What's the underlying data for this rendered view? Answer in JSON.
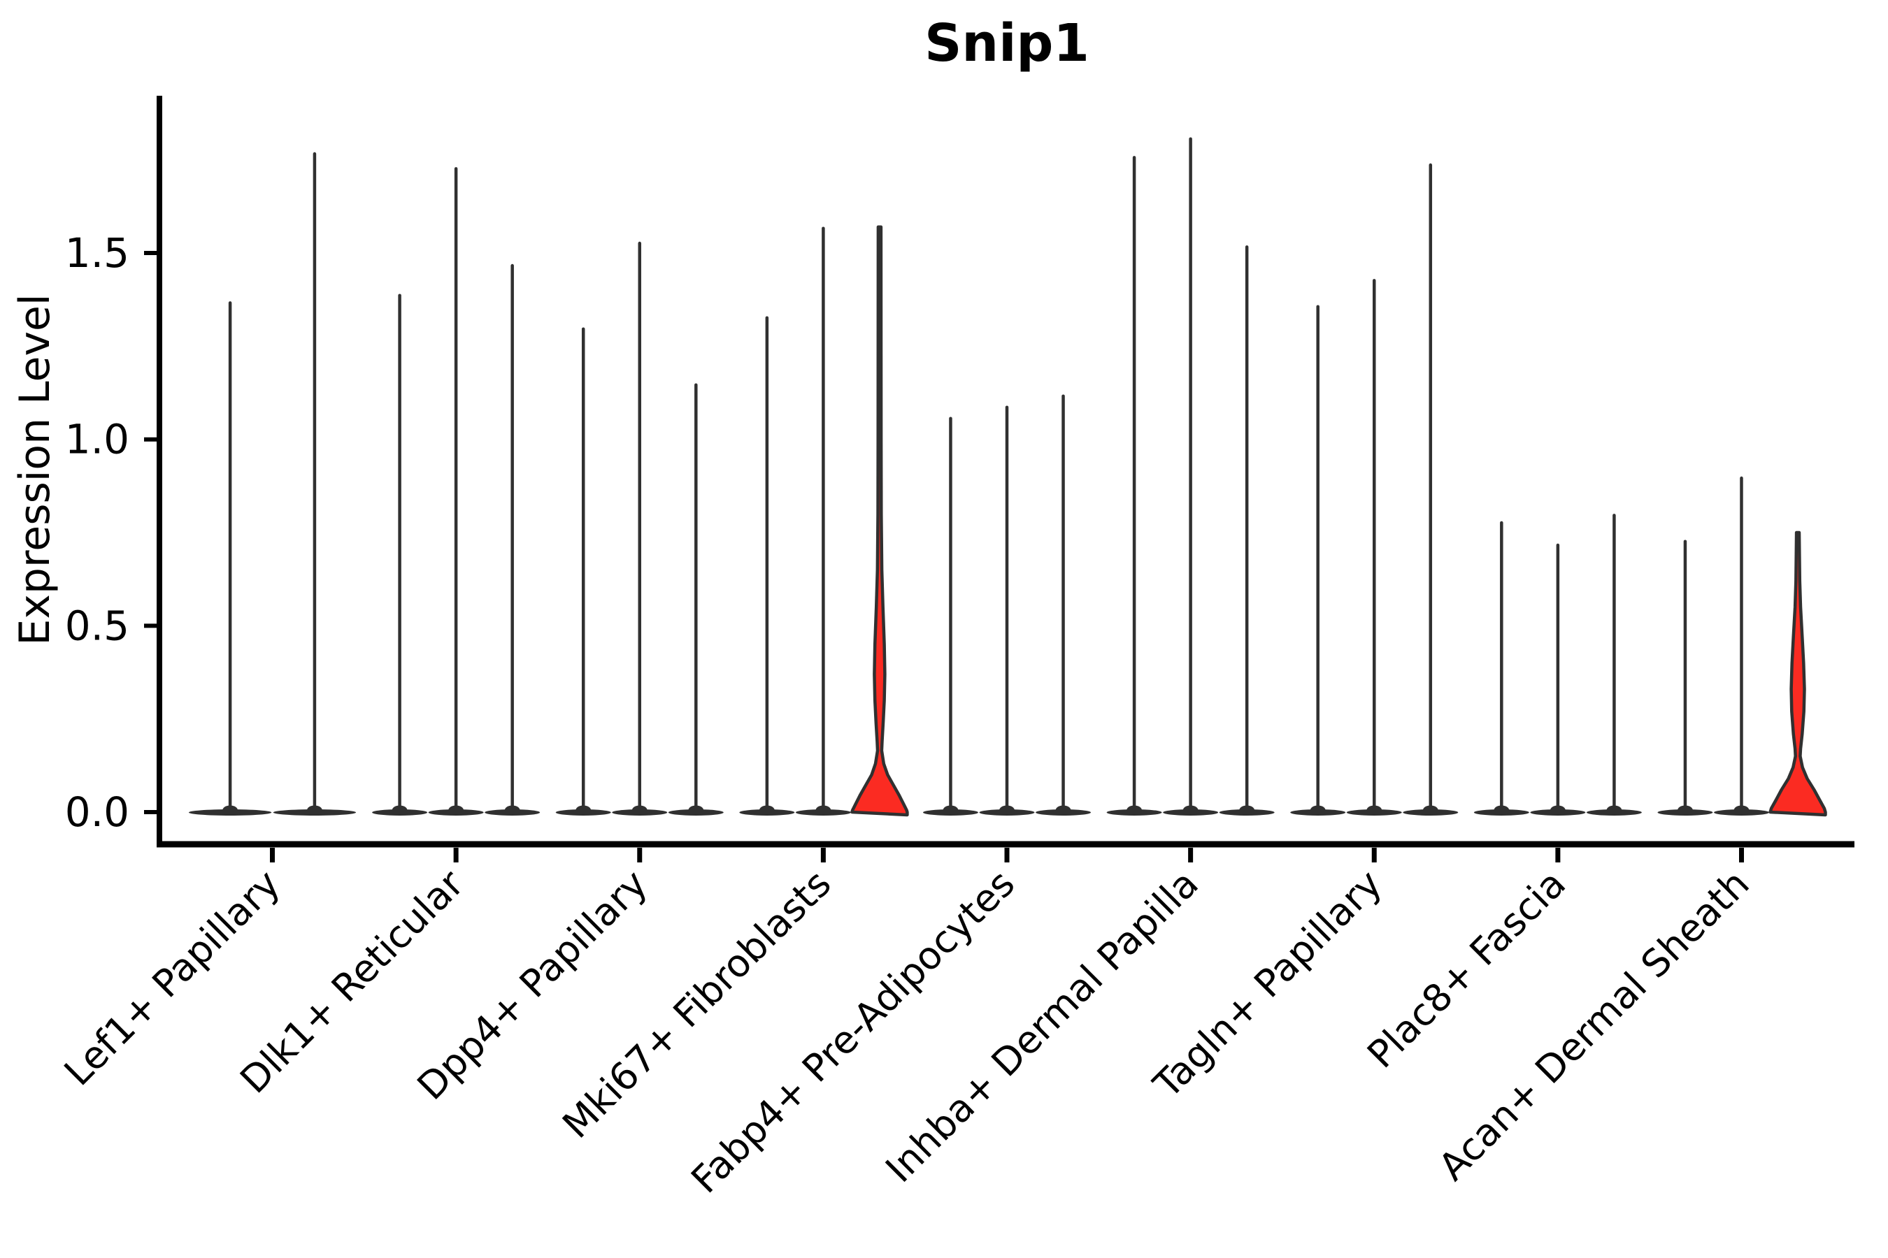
{
  "chart_data": {
    "type": "violin",
    "title": "Snip1",
    "ylabel": "Expression Level",
    "xlabel": "",
    "yticks": [
      "0.0",
      "0.5",
      "1.0",
      "1.5"
    ],
    "ytick_values": [
      0.0,
      0.5,
      1.0,
      1.5
    ],
    "ylim": [
      -0.086,
      1.92
    ],
    "grid": "off",
    "legend": "none",
    "tick_label_rotation_deg": 45,
    "categories": [
      "Lef1+ Papillary",
      "Dlk1+ Reticular",
      "Dpp4+ Papillary",
      "Mki67+ Fibroblasts",
      "Fabp4+ Pre-Adipocytes",
      "Inhba+ Dermal Papilla",
      "Tagln+ Papillary",
      "Plac8+ Fascia",
      "Acan+ Dermal Sheath"
    ],
    "groups": [
      {
        "label": "Lef1+ Papillary",
        "violins": [
          {
            "max": 1.37
          },
          {
            "max": 1.77
          }
        ]
      },
      {
        "label": "Dlk1+ Reticular",
        "violins": [
          {
            "max": 1.39
          },
          {
            "max": 1.73
          },
          {
            "max": 1.47
          }
        ]
      },
      {
        "label": "Dpp4+ Papillary",
        "violins": [
          {
            "max": 1.3
          },
          {
            "max": 1.53
          },
          {
            "max": 1.15
          }
        ]
      },
      {
        "label": "Mki67+ Fibroblasts",
        "violins": [
          {
            "max": 1.33
          },
          {
            "max": 1.57
          },
          {
            "max": 1.57,
            "filled": true,
            "profile": [
              [
                1.57,
                0.05
              ],
              [
                1.0,
                0.055
              ],
              [
                0.8,
                0.06
              ],
              [
                0.65,
                0.08
              ],
              [
                0.55,
                0.12
              ],
              [
                0.45,
                0.17
              ],
              [
                0.37,
                0.19
              ],
              [
                0.3,
                0.17
              ],
              [
                0.24,
                0.13
              ],
              [
                0.19,
                0.09
              ],
              [
                0.165,
                0.075
              ],
              [
                0.13,
                0.15
              ],
              [
                0.1,
                0.29
              ],
              [
                0.07,
                0.52
              ],
              [
                0.045,
                0.71
              ],
              [
                0.02,
                0.88
              ],
              [
                0.005,
                0.98
              ],
              [
                0.0,
                1.0
              ]
            ]
          }
        ]
      },
      {
        "label": "Fabp4+ Pre-Adipocytes",
        "violins": [
          {
            "max": 1.06
          },
          {
            "max": 1.09
          },
          {
            "max": 1.12
          }
        ]
      },
      {
        "label": "Inhba+ Dermal Papilla",
        "violins": [
          {
            "max": 1.76
          },
          {
            "max": 1.81
          },
          {
            "max": 1.52
          }
        ]
      },
      {
        "label": "Tagln+ Papillary",
        "violins": [
          {
            "max": 1.36
          },
          {
            "max": 1.43
          },
          {
            "max": 1.74
          }
        ]
      },
      {
        "label": "Plac8+ Fascia",
        "violins": [
          {
            "max": 0.78
          },
          {
            "max": 0.72
          },
          {
            "max": 0.8
          }
        ]
      },
      {
        "label": "Acan+ Dermal Sheath",
        "violins": [
          {
            "max": 0.73
          },
          {
            "max": 0.9
          },
          {
            "max": 0.75,
            "filled": true,
            "profile": [
              [
                0.75,
                0.05
              ],
              [
                0.62,
                0.07
              ],
              [
                0.55,
                0.1
              ],
              [
                0.47,
                0.16
              ],
              [
                0.4,
                0.21
              ],
              [
                0.33,
                0.24
              ],
              [
                0.27,
                0.22
              ],
              [
                0.21,
                0.16
              ],
              [
                0.17,
                0.1
              ],
              [
                0.15,
                0.085
              ],
              [
                0.12,
                0.17
              ],
              [
                0.09,
                0.34
              ],
              [
                0.06,
                0.59
              ],
              [
                0.03,
                0.81
              ],
              [
                0.01,
                0.96
              ],
              [
                0.0,
                1.0
              ]
            ]
          }
        ]
      }
    ],
    "colors": {
      "violin_outline": "#303030",
      "highlight_fill": "#fb2b22",
      "axis": "#000000",
      "text": "#000000",
      "background": "#ffffff"
    }
  }
}
